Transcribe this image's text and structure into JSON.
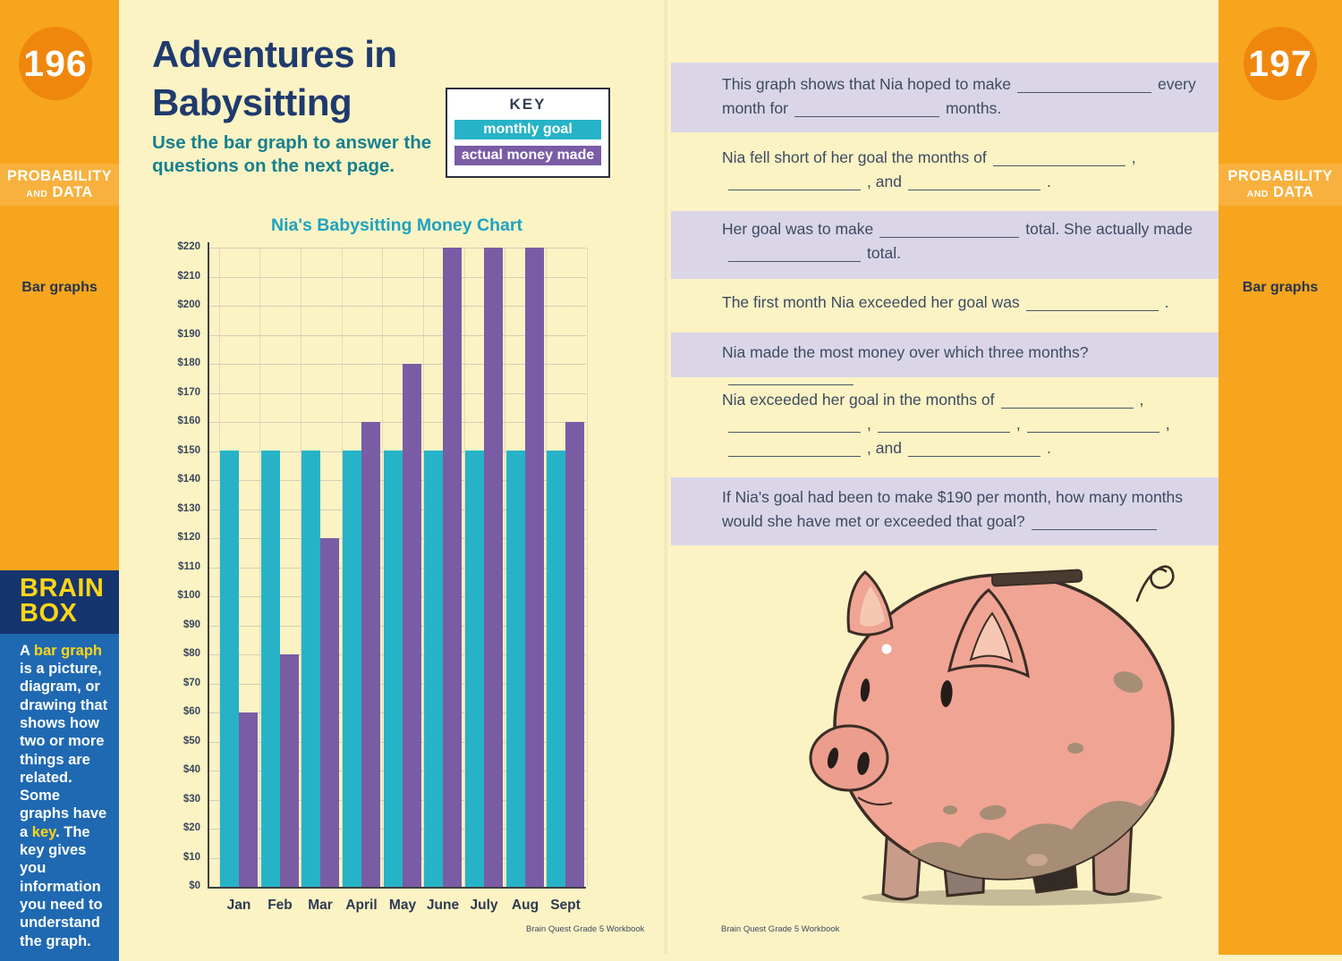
{
  "left_sidebar": {
    "page_number": "196",
    "section_line1": "PROBABILITY",
    "section_and": "AND",
    "section_line2": "DATA",
    "topic": "Bar graphs",
    "brain_box": {
      "title_line1": "BRAIN",
      "title_line2": "BOX",
      "lines": [
        [
          {
            "t": "A "
          },
          {
            "t": "bar graph",
            "hl": true
          }
        ],
        [
          {
            "t": "is a picture,"
          }
        ],
        [
          {
            "t": "diagram, or"
          }
        ],
        [
          {
            "t": "drawing that"
          }
        ],
        [
          {
            "t": "shows how"
          }
        ],
        [
          {
            "t": "two or more"
          }
        ],
        [
          {
            "t": "things are"
          }
        ],
        [
          {
            "t": "related. Some"
          }
        ],
        [
          {
            "t": "graphs have"
          }
        ],
        [
          {
            "t": "a "
          },
          {
            "t": "key",
            "hl": true
          },
          {
            "t": ". The"
          }
        ],
        [
          {
            "t": "key gives you"
          }
        ],
        [
          {
            "t": "information"
          }
        ],
        [
          {
            "t": "you need to"
          }
        ],
        [
          {
            "t": "understand"
          }
        ],
        [
          {
            "t": "the graph."
          }
        ]
      ]
    }
  },
  "right_sidebar": {
    "page_number": "197",
    "section_line1": "PROBABILITY",
    "section_and": "AND",
    "section_line2": "DATA",
    "topic": "Bar graphs"
  },
  "left_page": {
    "title_line1": "Adventures in",
    "title_line2": "Babysitting",
    "intro_line1": [
      {
        "t": "Use the "
      },
      {
        "t": "bar graph",
        "b": true
      },
      {
        "t": " to answer the"
      }
    ],
    "intro_line2": [
      {
        "t": "questions on the next page."
      }
    ],
    "key_title": "KEY",
    "footer": "Brain Quest Grade 5 Workbook"
  },
  "chart_data": {
    "type": "bar",
    "title": "Nia's Babysitting Money Chart",
    "categories": [
      "Jan",
      "Feb",
      "Mar",
      "April",
      "May",
      "June",
      "July",
      "Aug",
      "Sept"
    ],
    "series": [
      {
        "name": "monthly goal",
        "color": "#27B3C7",
        "values": [
          150,
          150,
          150,
          150,
          150,
          150,
          150,
          150,
          150
        ]
      },
      {
        "name": "actual money made",
        "color": "#7A5CA5",
        "values": [
          60,
          80,
          120,
          160,
          180,
          220,
          220,
          220,
          160
        ]
      }
    ],
    "ylabel_prefix": "$",
    "ylim": [
      0,
      220
    ],
    "ytick_step": 10,
    "grid": true,
    "legend_position": "key box, top-right of left page"
  },
  "right_page": {
    "questions": [
      {
        "bg": "lavender",
        "lines": [
          [
            {
              "t": "This graph shows that Nia hoped to make"
            },
            {
              "blank": 150
            },
            {
              "t": "every"
            }
          ],
          [
            {
              "t": "month for"
            },
            {
              "blank": 162
            },
            {
              "t": "months."
            }
          ]
        ]
      },
      {
        "bg": "plain",
        "lines": [
          [
            {
              "t": "Nia fell short of her goal the months of"
            },
            {
              "blank": 148
            },
            {
              "t": ","
            }
          ],
          [
            {
              "blank": 148
            },
            {
              "t": ", and"
            },
            {
              "blank": 148
            },
            {
              "t": "."
            }
          ]
        ]
      },
      {
        "bg": "lavender",
        "lines": [
          [
            {
              "t": "Her goal was to make"
            },
            {
              "blank": 156
            },
            {
              "t": "total. She actually made"
            }
          ],
          [
            {
              "blank": 148
            },
            {
              "t": "total."
            }
          ]
        ]
      },
      {
        "bg": "plain",
        "lines": [
          [
            {
              "t": "The first month Nia exceeded her goal was"
            },
            {
              "blank": 148
            },
            {
              "t": "."
            }
          ]
        ]
      },
      {
        "bg": "lavender",
        "lines": [
          [
            {
              "t": "Nia made the most money over which three months?"
            },
            {
              "blank": 140
            }
          ]
        ]
      },
      {
        "bg": "plain",
        "lines": [
          [
            {
              "t": "Nia exceeded her goal in the months of"
            },
            {
              "blank": 148
            },
            {
              "t": ","
            }
          ],
          [
            {
              "blank": 148
            },
            {
              "t": ","
            },
            {
              "blank": 148
            },
            {
              "t": ","
            },
            {
              "blank": 148
            },
            {
              "t": ","
            }
          ],
          [
            {
              "blank": 148
            },
            {
              "t": ", and"
            },
            {
              "blank": 148
            },
            {
              "t": "."
            }
          ]
        ]
      },
      {
        "bg": "lavender",
        "lines": [
          [
            {
              "t": "If Nia's goal had been to make $190 per month, how many months"
            }
          ],
          [
            {
              "t": "would she have met or exceeded that goal?"
            },
            {
              "blank": 140
            }
          ]
        ]
      }
    ],
    "footer": "Brain Quest Grade 5 Workbook",
    "illustration": "piggy-bank"
  }
}
